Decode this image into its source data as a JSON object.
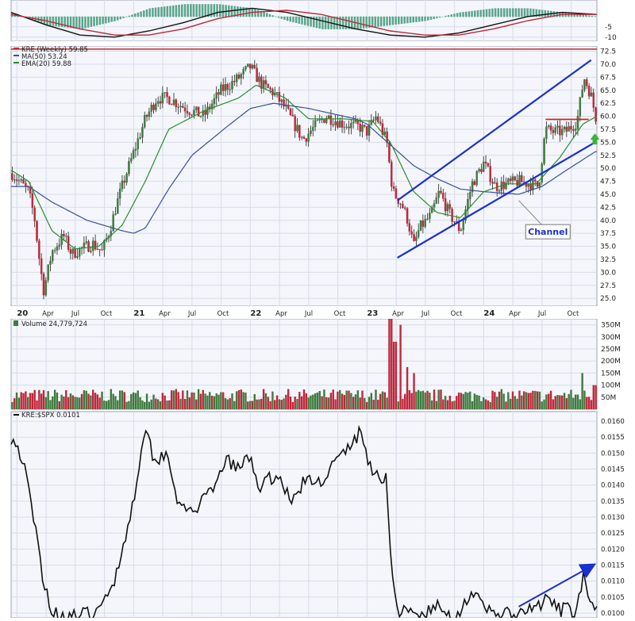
{
  "colors": {
    "panel_bg": "#f4f6fb",
    "grid": "#d7dce8",
    "price_up": "#3e7a3e",
    "price_down": "#c0263a",
    "ma50": "#3b4f9a",
    "ema20": "#2e8b2e",
    "channel": "#1a2fd0",
    "resistance": "#d02020",
    "top_line": "#b81c1c",
    "ratio_line": "#111111",
    "arrow_green": "#3bb33b",
    "macd_hist": "#5aa58a",
    "axis_text": "#222222"
  },
  "chart_data": [
    {
      "type": "line",
      "panel": "momentum",
      "y_ticks": [
        "-5",
        "-10"
      ],
      "series": [
        {
          "values": [
            2,
            -4,
            -9,
            -10,
            -7,
            -3,
            2,
            4,
            2,
            -2,
            -6,
            -9,
            -10,
            -8,
            -4,
            0,
            2,
            1
          ]
        },
        {
          "values": [
            1,
            -2,
            -6,
            -9,
            -9,
            -6,
            -1,
            2,
            3,
            1,
            -3,
            -7,
            -9,
            -9,
            -6,
            -2,
            1,
            1
          ]
        }
      ]
    },
    {
      "type": "candlestick",
      "panel": "price",
      "legend": [
        {
          "label": "KRE (Weekly) 59.85",
          "color": "#c0263a"
        },
        {
          "label": "MA(50) 53.24",
          "color": "#3b4f9a"
        },
        {
          "label": "EMA(20) 59.88",
          "color": "#2e8b2e"
        }
      ],
      "y_ticks": [
        "72.5",
        "70.0",
        "67.5",
        "65.0",
        "62.5",
        "60.0",
        "57.5",
        "55.0",
        "52.5",
        "50.0",
        "47.5",
        "45.0",
        "42.5",
        "40.0",
        "37.5",
        "35.0",
        "32.5",
        "30.0",
        "27.5",
        "25.0"
      ],
      "x_ticks": [
        {
          "label": "20",
          "year": true,
          "t": 2020.0
        },
        {
          "label": "Apr",
          "t": 2020.25
        },
        {
          "label": "Jul",
          "t": 2020.5
        },
        {
          "label": "Oct",
          "t": 2020.75
        },
        {
          "label": "21",
          "year": true,
          "t": 2021.0
        },
        {
          "label": "Apr",
          "t": 2021.25
        },
        {
          "label": "Jul",
          "t": 2021.5
        },
        {
          "label": "Oct",
          "t": 2021.75
        },
        {
          "label": "22",
          "year": true,
          "t": 2022.0
        },
        {
          "label": "Apr",
          "t": 2022.25
        },
        {
          "label": "Jul",
          "t": 2022.5
        },
        {
          "label": "Oct",
          "t": 2022.75
        },
        {
          "label": "23",
          "year": true,
          "t": 2023.0
        },
        {
          "label": "Apr",
          "t": 2023.25
        },
        {
          "label": "Jul",
          "t": 2023.5
        },
        {
          "label": "Oct",
          "t": 2023.75
        },
        {
          "label": "24",
          "year": true,
          "t": 2024.0
        },
        {
          "label": "Apr",
          "t": 2024.25
        },
        {
          "label": "Jul",
          "t": 2024.5
        },
        {
          "label": "Oct",
          "t": 2024.75
        }
      ],
      "x_range": [
        2019.95,
        2024.97
      ],
      "y_range": [
        23.5,
        73.5
      ],
      "close_keypoints": [
        [
          2019.96,
          49.0
        ],
        [
          2020.1,
          45.5
        ],
        [
          2020.15,
          40.5
        ],
        [
          2020.2,
          31.0
        ],
        [
          2020.23,
          26.5
        ],
        [
          2020.3,
          34.0
        ],
        [
          2020.4,
          37.0
        ],
        [
          2020.47,
          33.5
        ],
        [
          2020.55,
          34.5
        ],
        [
          2020.65,
          35.5
        ],
        [
          2020.73,
          34.0
        ],
        [
          2020.8,
          38.5
        ],
        [
          2020.86,
          43.5
        ],
        [
          2020.93,
          48.5
        ],
        [
          2021.0,
          53.0
        ],
        [
          2021.1,
          59.5
        ],
        [
          2021.2,
          63.5
        ],
        [
          2021.3,
          63.5
        ],
        [
          2021.45,
          61.5
        ],
        [
          2021.6,
          60.0
        ],
        [
          2021.75,
          65.0
        ],
        [
          2021.88,
          67.0
        ],
        [
          2022.0,
          69.5
        ],
        [
          2022.1,
          66.0
        ],
        [
          2022.2,
          64.5
        ],
        [
          2022.3,
          61.5
        ],
        [
          2022.45,
          55.5
        ],
        [
          2022.55,
          58.0
        ],
        [
          2022.65,
          60.0
        ],
        [
          2022.8,
          58.5
        ],
        [
          2022.93,
          58.0
        ],
        [
          2023.0,
          57.0
        ],
        [
          2023.08,
          60.0
        ],
        [
          2023.17,
          55.0
        ],
        [
          2023.22,
          45.5
        ],
        [
          2023.3,
          43.0
        ],
        [
          2023.35,
          40.0
        ],
        [
          2023.4,
          35.0
        ],
        [
          2023.45,
          38.5
        ],
        [
          2023.55,
          41.0
        ],
        [
          2023.62,
          45.5
        ],
        [
          2023.7,
          41.5
        ],
        [
          2023.8,
          38.0
        ],
        [
          2023.9,
          47.0
        ],
        [
          2024.0,
          51.0
        ],
        [
          2024.1,
          46.5
        ],
        [
          2024.2,
          47.0
        ],
        [
          2024.3,
          47.5
        ],
        [
          2024.4,
          47.0
        ],
        [
          2024.47,
          46.5
        ],
        [
          2024.53,
          57.5
        ],
        [
          2024.6,
          57.0
        ],
        [
          2024.7,
          57.0
        ],
        [
          2024.8,
          59.0
        ],
        [
          2024.86,
          67.5
        ],
        [
          2024.92,
          64.0
        ],
        [
          2024.96,
          59.85
        ]
      ],
      "ma50_keypoints": [
        [
          2019.96,
          46.5
        ],
        [
          2020.1,
          46.5
        ],
        [
          2020.3,
          43.5
        ],
        [
          2020.6,
          40.0
        ],
        [
          2020.9,
          38.0
        ],
        [
          2021.0,
          37.5
        ],
        [
          2021.1,
          38.5
        ],
        [
          2021.3,
          46.0
        ],
        [
          2021.5,
          52.5
        ],
        [
          2021.8,
          58.0
        ],
        [
          2022.0,
          61.5
        ],
        [
          2022.2,
          62.5
        ],
        [
          2022.5,
          61.5
        ],
        [
          2022.9,
          59.5
        ],
        [
          2023.0,
          58.5
        ],
        [
          2023.2,
          54.5
        ],
        [
          2023.4,
          50.5
        ],
        [
          2023.6,
          48.0
        ],
        [
          2023.8,
          46.0
        ],
        [
          2024.0,
          45.5
        ],
        [
          2024.3,
          45.0
        ],
        [
          2024.5,
          46.5
        ],
        [
          2024.7,
          49.5
        ],
        [
          2024.96,
          53.24
        ]
      ],
      "ema20_keypoints": [
        [
          2019.96,
          49.5
        ],
        [
          2020.1,
          47.5
        ],
        [
          2020.3,
          38.0
        ],
        [
          2020.5,
          34.5
        ],
        [
          2020.7,
          35.0
        ],
        [
          2020.9,
          39.0
        ],
        [
          2021.1,
          47.5
        ],
        [
          2021.3,
          57.5
        ],
        [
          2021.6,
          61.0
        ],
        [
          2021.9,
          63.5
        ],
        [
          2022.05,
          66.0
        ],
        [
          2022.3,
          63.5
        ],
        [
          2022.5,
          59.5
        ],
        [
          2022.8,
          59.5
        ],
        [
          2023.05,
          59.0
        ],
        [
          2023.2,
          55.0
        ],
        [
          2023.4,
          45.5
        ],
        [
          2023.6,
          41.5
        ],
        [
          2023.8,
          40.5
        ],
        [
          2024.0,
          45.5
        ],
        [
          2024.2,
          47.0
        ],
        [
          2024.45,
          47.0
        ],
        [
          2024.65,
          52.0
        ],
        [
          2024.85,
          58.5
        ],
        [
          2024.96,
          59.88
        ]
      ],
      "channel_upper": [
        [
          2023.26,
          43.8
        ],
        [
          2024.92,
          70.8
        ]
      ],
      "channel_lower": [
        [
          2023.26,
          32.8
        ],
        [
          2024.97,
          55.2
        ]
      ],
      "resistance_line": [
        [
          2024.53,
          59.4
        ],
        [
          2024.9,
          59.4
        ]
      ],
      "top_line_value": 72.9,
      "annotation": {
        "label": "Channel",
        "t": 2024.55,
        "value": 37.8,
        "pointer_t": 2024.3,
        "pointer_value": 43.8
      }
    },
    {
      "type": "bar",
      "panel": "volume",
      "legend": [
        {
          "label": "Volume 24,779,724"
        }
      ],
      "y_ticks": [
        "350M",
        "300M",
        "250M",
        "200M",
        "150M",
        "100M",
        "50M"
      ],
      "y_range": [
        0,
        375
      ],
      "baseline": 60,
      "spikes": [
        [
          2023.2,
          375
        ],
        [
          2023.24,
          280
        ],
        [
          2023.28,
          350
        ],
        [
          2023.35,
          175
        ],
        [
          2023.4,
          150
        ],
        [
          2024.85,
          150
        ],
        [
          2024.95,
          100
        ]
      ]
    },
    {
      "type": "line",
      "panel": "ratio",
      "legend": [
        {
          "label": "KRE:$SPX 0.0101"
        }
      ],
      "y_ticks": [
        "0.0160",
        "0.0155",
        "0.0150",
        "0.0145",
        "0.0140",
        "0.0135",
        "0.0130",
        "0.0125",
        "0.0120",
        "0.0115",
        "0.0110",
        "0.0105",
        "0.0100"
      ],
      "y_range": [
        0.00985,
        0.0163
      ],
      "keypoints": [
        [
          2019.96,
          0.0155
        ],
        [
          2020.05,
          0.0148
        ],
        [
          2020.15,
          0.0128
        ],
        [
          2020.22,
          0.0112
        ],
        [
          2020.3,
          0.01
        ],
        [
          2020.45,
          0.0099
        ],
        [
          2020.7,
          0.01
        ],
        [
          2020.85,
          0.0112
        ],
        [
          2021.0,
          0.0135
        ],
        [
          2021.07,
          0.0153
        ],
        [
          2021.1,
          0.0159
        ],
        [
          2021.18,
          0.0147
        ],
        [
          2021.28,
          0.0151
        ],
        [
          2021.4,
          0.0132
        ],
        [
          2021.5,
          0.0132
        ],
        [
          2021.6,
          0.0135
        ],
        [
          2021.7,
          0.0139
        ],
        [
          2021.78,
          0.0148
        ],
        [
          2021.9,
          0.0145
        ],
        [
          2022.0,
          0.0149
        ],
        [
          2022.08,
          0.0139
        ],
        [
          2022.2,
          0.0143
        ],
        [
          2022.28,
          0.0141
        ],
        [
          2022.35,
          0.0134
        ],
        [
          2022.45,
          0.0141
        ],
        [
          2022.6,
          0.0141
        ],
        [
          2022.7,
          0.0146
        ],
        [
          2022.85,
          0.0152
        ],
        [
          2022.95,
          0.0157
        ],
        [
          2023.0,
          0.0148
        ],
        [
          2023.1,
          0.0142
        ],
        [
          2023.17,
          0.0143
        ],
        [
          2023.2,
          0.0118
        ],
        [
          2023.25,
          0.0101
        ],
        [
          2023.45,
          0.0099
        ],
        [
          2023.6,
          0.0102
        ],
        [
          2023.75,
          0.0098
        ],
        [
          2023.9,
          0.0107
        ],
        [
          2024.0,
          0.0101
        ],
        [
          2024.3,
          0.0099
        ],
        [
          2024.55,
          0.0104
        ],
        [
          2024.65,
          0.0101
        ],
        [
          2024.8,
          0.0101
        ],
        [
          2024.85,
          0.0112
        ],
        [
          2024.9,
          0.0102
        ],
        [
          2024.96,
          0.0101
        ]
      ],
      "trend_arrow": [
        [
          2024.3,
          0.0102
        ],
        [
          2024.94,
          0.0115
        ]
      ]
    }
  ]
}
